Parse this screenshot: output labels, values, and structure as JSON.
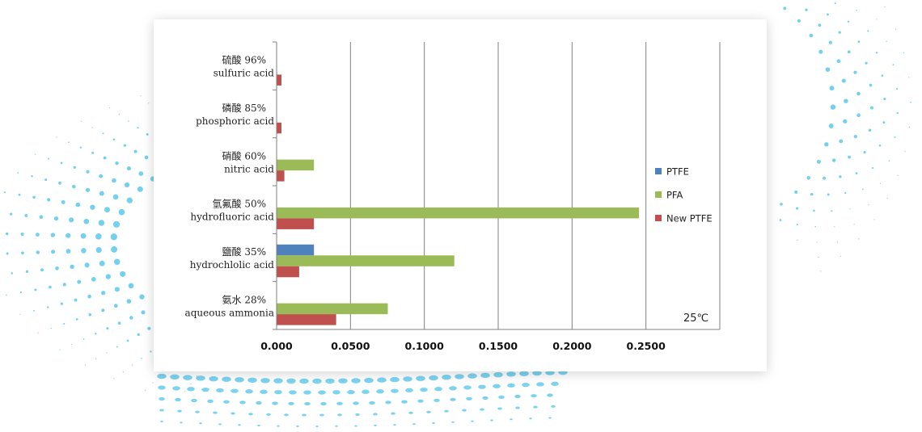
{
  "chart_data": {
    "type": "bar",
    "orientation": "horizontal",
    "categories": [
      {
        "zh": "硫酸 96%",
        "en": "sulfuric acid"
      },
      {
        "zh": "磷酸 85%",
        "en": "phosphoric acid"
      },
      {
        "zh": "硝酸 60%",
        "en": "nitric acid"
      },
      {
        "zh": "氫氟酸 50%",
        "en": "hydrofluoric acid"
      },
      {
        "zh": "鹽酸 35%",
        "en": "hydrochlolic acid"
      },
      {
        "zh": "氨水 28%",
        "en": "aqueous ammonia"
      }
    ],
    "series": [
      {
        "name": "PTFE",
        "color": "#4f81bd",
        "values": [
          0,
          0,
          0,
          0,
          0.025,
          0
        ]
      },
      {
        "name": "PFA",
        "color": "#9bbb59",
        "values": [
          0,
          0,
          0.025,
          0.245,
          0.12,
          0.075
        ]
      },
      {
        "name": "New PTFE",
        "color": "#c0504d",
        "values": [
          0.003,
          0.003,
          0.005,
          0.025,
          0.015,
          0.04
        ]
      }
    ],
    "xlim": [
      0,
      0.3
    ],
    "xticks": [
      0,
      0.05,
      0.1,
      0.15,
      0.2,
      0.25
    ],
    "xtick_labels": [
      "0.000",
      "0.0500",
      "0.1000",
      "0.1500",
      "0.2000",
      "0.2500"
    ],
    "grid": "vertical",
    "legend": "right",
    "annotation": "25℃"
  }
}
